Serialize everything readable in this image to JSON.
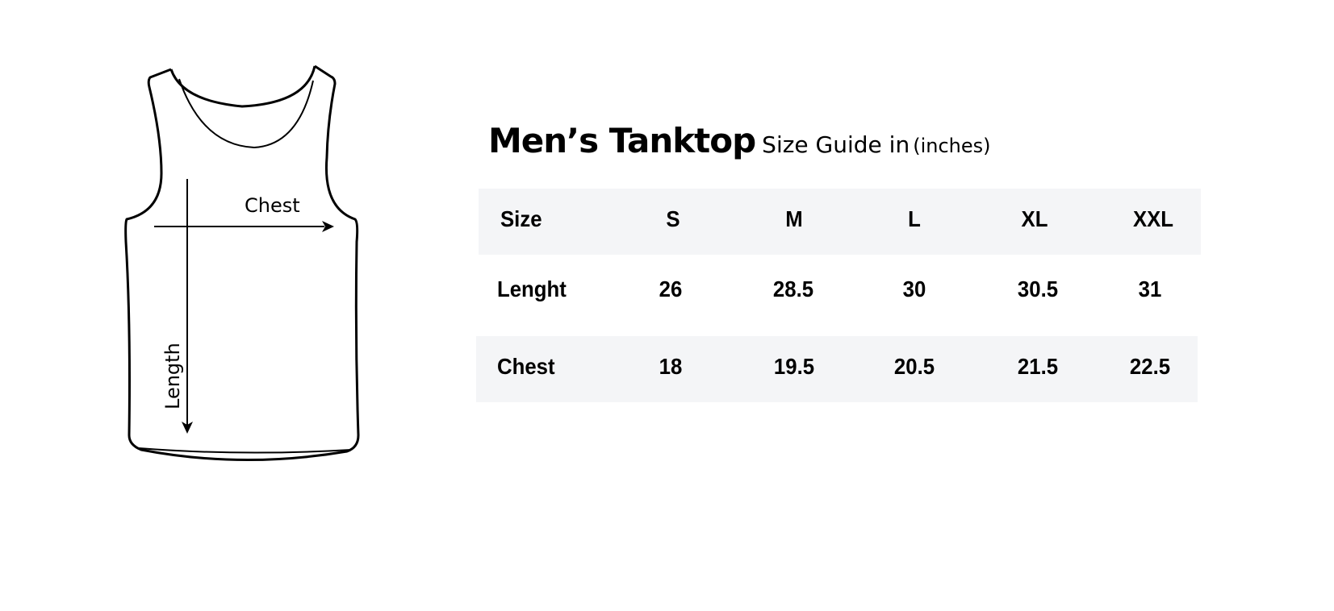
{
  "title": {
    "main": "Men’s Tanktop",
    "sub": "Size Guide in",
    "unit": "(inches)"
  },
  "diagram": {
    "chest_label": "Chest",
    "length_label": "Length"
  },
  "table": {
    "header": [
      "Size",
      "S",
      "M",
      "L",
      "XL",
      "XXL"
    ],
    "rows": [
      [
        "Lenght",
        "26",
        "28.5",
        "30",
        "30.5",
        "31"
      ],
      [
        "Chest",
        "18",
        "19.5",
        "20.5",
        "21.5",
        "22.5"
      ]
    ]
  },
  "colors": {
    "band": "#f4f5f7",
    "text": "#000000"
  }
}
